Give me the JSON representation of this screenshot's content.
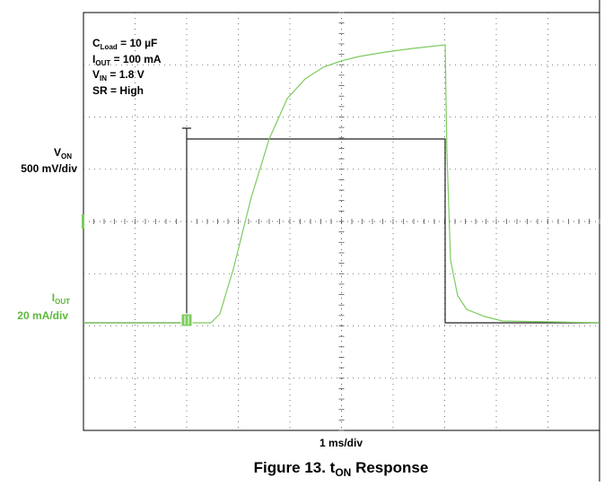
{
  "figure": {
    "caption": {
      "prefix": "Figure 13. t",
      "sub": "ON",
      "suffix": " Response"
    },
    "x_scale": "1 ms/div",
    "channels": [
      {
        "name": "V",
        "sub": "ON",
        "scale": "500 mV/div"
      },
      {
        "name": "I",
        "sub": "OUT",
        "scale": "20 mA/div"
      }
    ],
    "conditions": [
      {
        "name": "C",
        "sub": "Load",
        "rest": " = 10 µF"
      },
      {
        "name": "I",
        "sub": "OUT",
        "rest": " = 100 mA"
      },
      {
        "name": "V",
        "sub": "IN",
        "rest": " = 1.8 V"
      },
      {
        "name": "SR = High",
        "sub": "",
        "rest": ""
      }
    ]
  }
}
